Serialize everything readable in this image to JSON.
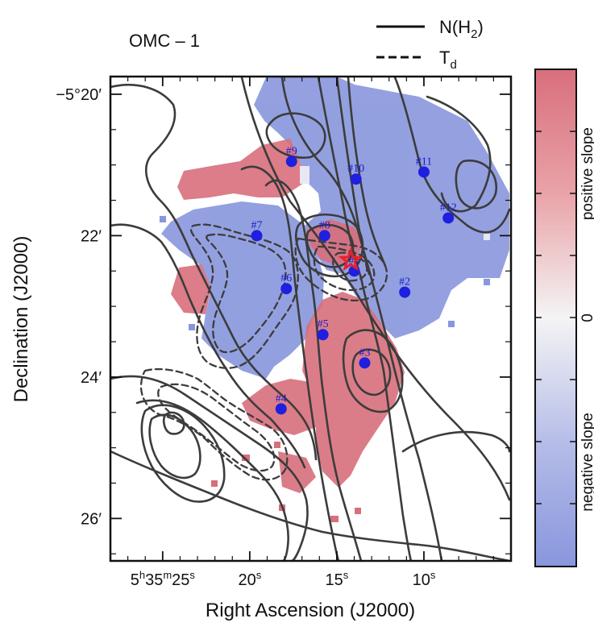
{
  "chart_data": {
    "type": "map",
    "title": "OMC – 1",
    "xlabel": "Right Ascension (J2000)",
    "ylabel": "Declination (J2000)",
    "x_ticks": [
      {
        "value": 25,
        "prefix": "5",
        "h": "h",
        "mid": "35",
        "m": "m",
        "num": "25",
        "s": "s"
      },
      {
        "value": 20,
        "prefix": "",
        "h": "",
        "mid": "",
        "m": "",
        "num": "20",
        "s": "s"
      },
      {
        "value": 15,
        "prefix": "",
        "h": "",
        "mid": "",
        "m": "",
        "num": "15",
        "s": "s"
      },
      {
        "value": 10,
        "prefix": "",
        "h": "",
        "mid": "",
        "m": "",
        "num": "10",
        "s": "s"
      }
    ],
    "y_ticks": [
      {
        "value": 20,
        "text": "−5°20′"
      },
      {
        "value": 22,
        "text": "22′"
      },
      {
        "value": 24,
        "text": "24′"
      },
      {
        "value": 26,
        "text": "26′"
      }
    ],
    "xlim": [
      28.0,
      5.0
    ],
    "ylim": [
      26.6,
      19.75
    ],
    "legend": {
      "placement": "top-right",
      "entries": [
        {
          "kind": "solid",
          "label_main": "N(H",
          "label_sub": "2",
          "label_end": ")"
        },
        {
          "kind": "dashed",
          "label_main": "T",
          "label_sub": "d",
          "label_end": ""
        }
      ]
    },
    "colorbar": {
      "orientation": "vertical",
      "labels": [
        {
          "text": "positive slope",
          "pos": 0.79
        },
        {
          "text": "0",
          "pos": 0.5
        },
        {
          "text": "negative slope",
          "pos": 0.21
        }
      ],
      "color_top": "#d86f7c",
      "color_mid": "#f4f4f4",
      "color_bottom": "#8896dd"
    },
    "sources": [
      {
        "label": "#1",
        "ra": 14.0,
        "dec": 22.5
      },
      {
        "label": "#2",
        "ra": 11.1,
        "dec": 22.8
      },
      {
        "label": "#3",
        "ra": 13.4,
        "dec": 23.8
      },
      {
        "label": "#4",
        "ra": 18.2,
        "dec": 24.45
      },
      {
        "label": "#5",
        "ra": 15.8,
        "dec": 23.4
      },
      {
        "label": "#6",
        "ra": 17.9,
        "dec": 22.75
      },
      {
        "label": "#7",
        "ra": 19.6,
        "dec": 22.0
      },
      {
        "label": "#8",
        "ra": 15.7,
        "dec": 22.0
      },
      {
        "label": "#9",
        "ra": 17.6,
        "dec": 20.95
      },
      {
        "label": "#10",
        "ra": 13.9,
        "dec": 21.2
      },
      {
        "label": "#11",
        "ra": 10.0,
        "dec": 21.1
      },
      {
        "label": "#12",
        "ra": 8.6,
        "dec": 21.75
      }
    ],
    "star": {
      "ra": 14.2,
      "dec": 22.35
    },
    "colors": {
      "source_marker": "#1f1fe0",
      "star": "#e8202a",
      "contour": "#3c3c3c",
      "positive": "#d86f7c",
      "negative": "#8896dd"
    }
  }
}
